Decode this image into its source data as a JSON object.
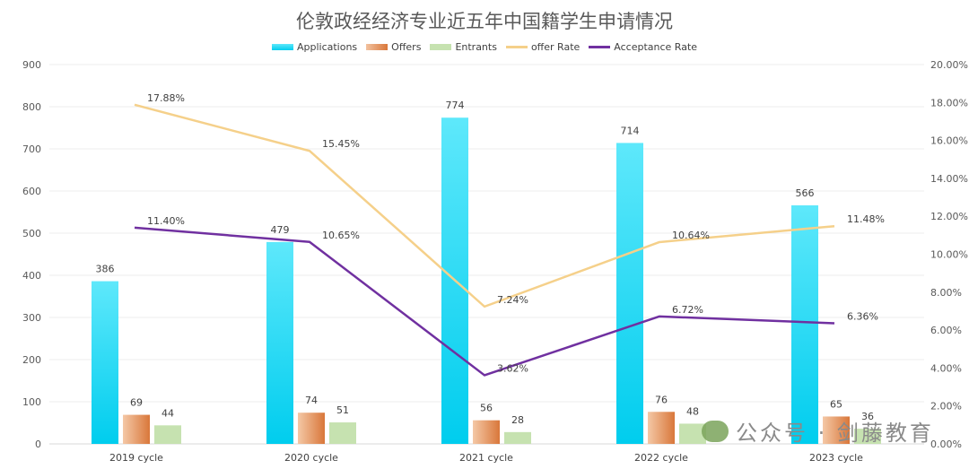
{
  "chart_data": {
    "type": "bar",
    "title": "伦敦政经经济专业近五年中国籍学生申请情况",
    "categories": [
      "2019 cycle",
      "2020 cycle",
      "2021 cycle",
      "2022 cycle",
      "2023 cycle"
    ],
    "series": [
      {
        "name": "Applications",
        "type": "bar",
        "axis": "left",
        "values": [
          386,
          479,
          774,
          714,
          566
        ]
      },
      {
        "name": "Offers",
        "type": "bar",
        "axis": "left",
        "values": [
          69,
          74,
          56,
          76,
          65
        ]
      },
      {
        "name": "Entrants",
        "type": "bar",
        "axis": "left",
        "values": [
          44,
          51,
          28,
          48,
          36
        ]
      },
      {
        "name": "offer Rate",
        "type": "line",
        "axis": "right",
        "values": [
          17.88,
          15.45,
          7.24,
          10.64,
          11.48
        ],
        "labels": [
          "17.88%",
          "15.45%",
          "7.24%",
          "10.64%",
          "11.48%"
        ]
      },
      {
        "name": "Acceptance Rate",
        "type": "line",
        "axis": "right",
        "values": [
          11.4,
          10.65,
          3.62,
          6.72,
          6.36
        ],
        "labels": [
          "11.40%",
          "10.65%",
          "3.62%",
          "6.72%",
          "6.36%"
        ]
      }
    ],
    "ylim": [
      0,
      900
    ],
    "yticks": [
      "0",
      "100",
      "200",
      "300",
      "400",
      "500",
      "600",
      "700",
      "800",
      "900"
    ],
    "y2lim": [
      0,
      20
    ],
    "y2ticks": [
      "0.00%",
      "2.00%",
      "4.00%",
      "6.00%",
      "8.00%",
      "10.00%",
      "12.00%",
      "14.00%",
      "16.00%",
      "18.00%",
      "20.00%"
    ],
    "grid": true,
    "legend": "top",
    "colors": {
      "Applications": "#1dd3f0",
      "Offers": "#e08a4e",
      "Entrants": "#c6e2b0",
      "offer Rate": "#f5d08a",
      "Acceptance Rate": "#7030a0"
    }
  },
  "watermark": {
    "text": "公众号 · 剑藤教育"
  }
}
